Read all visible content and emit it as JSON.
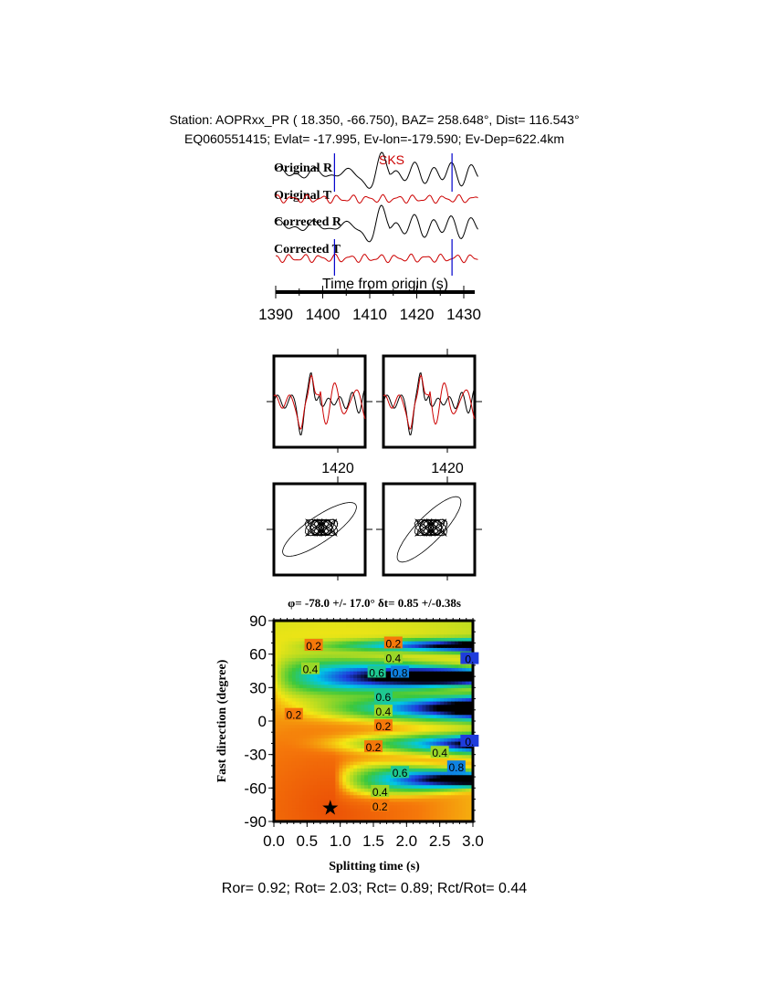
{
  "header": {
    "line1": "Station: AOPRxx_PR (  18.350,  -66.750), BAZ=  258.648°, Dist=  116.543°",
    "line2": "EQ060551415; Evlat= -17.995, Ev-lon=-179.590; Ev-Dep=622.4km"
  },
  "chart_data": [
    {
      "type": "line",
      "phase_label": "SKS",
      "traces": [
        "Original R",
        "Original T",
        "Corrected R",
        "Corrected T"
      ],
      "trace_colors": {
        "R": "#000000",
        "T": "#cc0000"
      },
      "window_lines_s": [
        1402.5,
        1427.5
      ],
      "window_color": "#0000cc",
      "xlabel": "Time from origin (s)",
      "xticks": [
        "1390",
        "1400",
        "1410",
        "1420",
        "1430"
      ],
      "xlim": [
        1390,
        1433
      ]
    },
    {
      "type": "line",
      "panels": [
        "waveform-overlay-original",
        "waveform-overlay-corrected"
      ],
      "tick_label": "1420"
    },
    {
      "type": "line",
      "panels": [
        "particle-motion-original",
        "particle-motion-corrected"
      ]
    },
    {
      "type": "heatmap",
      "title": "φ= -78.0 +/- 17.0° δt= 0.85 +/-0.38s",
      "xlabel": "Splitting time (s)",
      "ylabel": "Fast direction (degree)",
      "xlim": [
        0,
        3
      ],
      "ylim": [
        -90,
        90
      ],
      "xticks": [
        "0.0",
        "0.5",
        "1.0",
        "1.5",
        "2.0",
        "2.5",
        "3.0"
      ],
      "yticks": [
        "90",
        "60",
        "30",
        "0",
        "-30",
        "-60",
        "-90"
      ],
      "best_fit": {
        "dt": 0.85,
        "phi": -78.0
      },
      "contour_labels": [
        {
          "text": "0.2",
          "dt": 0.6,
          "phi": 68
        },
        {
          "text": "0.2",
          "dt": 1.8,
          "phi": 70
        },
        {
          "text": "0.4",
          "dt": 1.8,
          "phi": 63
        },
        {
          "text": "0.6",
          "dt": 1.55,
          "phi": 56
        },
        {
          "text": "0.4",
          "dt": 0.55,
          "phi": 47
        },
        {
          "text": "0.8",
          "dt": 1.9,
          "phi": 44
        },
        {
          "text": "0.",
          "dt": 2.95,
          "phi": 56
        },
        {
          "text": "0.6",
          "dt": 1.65,
          "phi": 22
        },
        {
          "text": "0.4",
          "dt": 1.65,
          "phi": 12
        },
        {
          "text": "0.2",
          "dt": 0.3,
          "phi": 6
        },
        {
          "text": "0.2",
          "dt": 1.65,
          "phi": 0
        },
        {
          "text": "0.",
          "dt": 2.95,
          "phi": -18
        },
        {
          "text": "0.2",
          "dt": 1.5,
          "phi": -23
        },
        {
          "text": "0.4",
          "dt": 2.5,
          "phi": -28
        },
        {
          "text": "0.6",
          "dt": 1.9,
          "phi": -46
        },
        {
          "text": "0.8",
          "dt": 2.75,
          "phi": -40
        },
        {
          "text": "0.4",
          "dt": 1.6,
          "phi": -63
        },
        {
          "text": "0.2",
          "dt": 1.6,
          "phi": -73
        }
      ]
    }
  ],
  "footer": "Ror= 0.92; Rot= 2.03; Rct= 0.89; Rct/Rot= 0.44"
}
